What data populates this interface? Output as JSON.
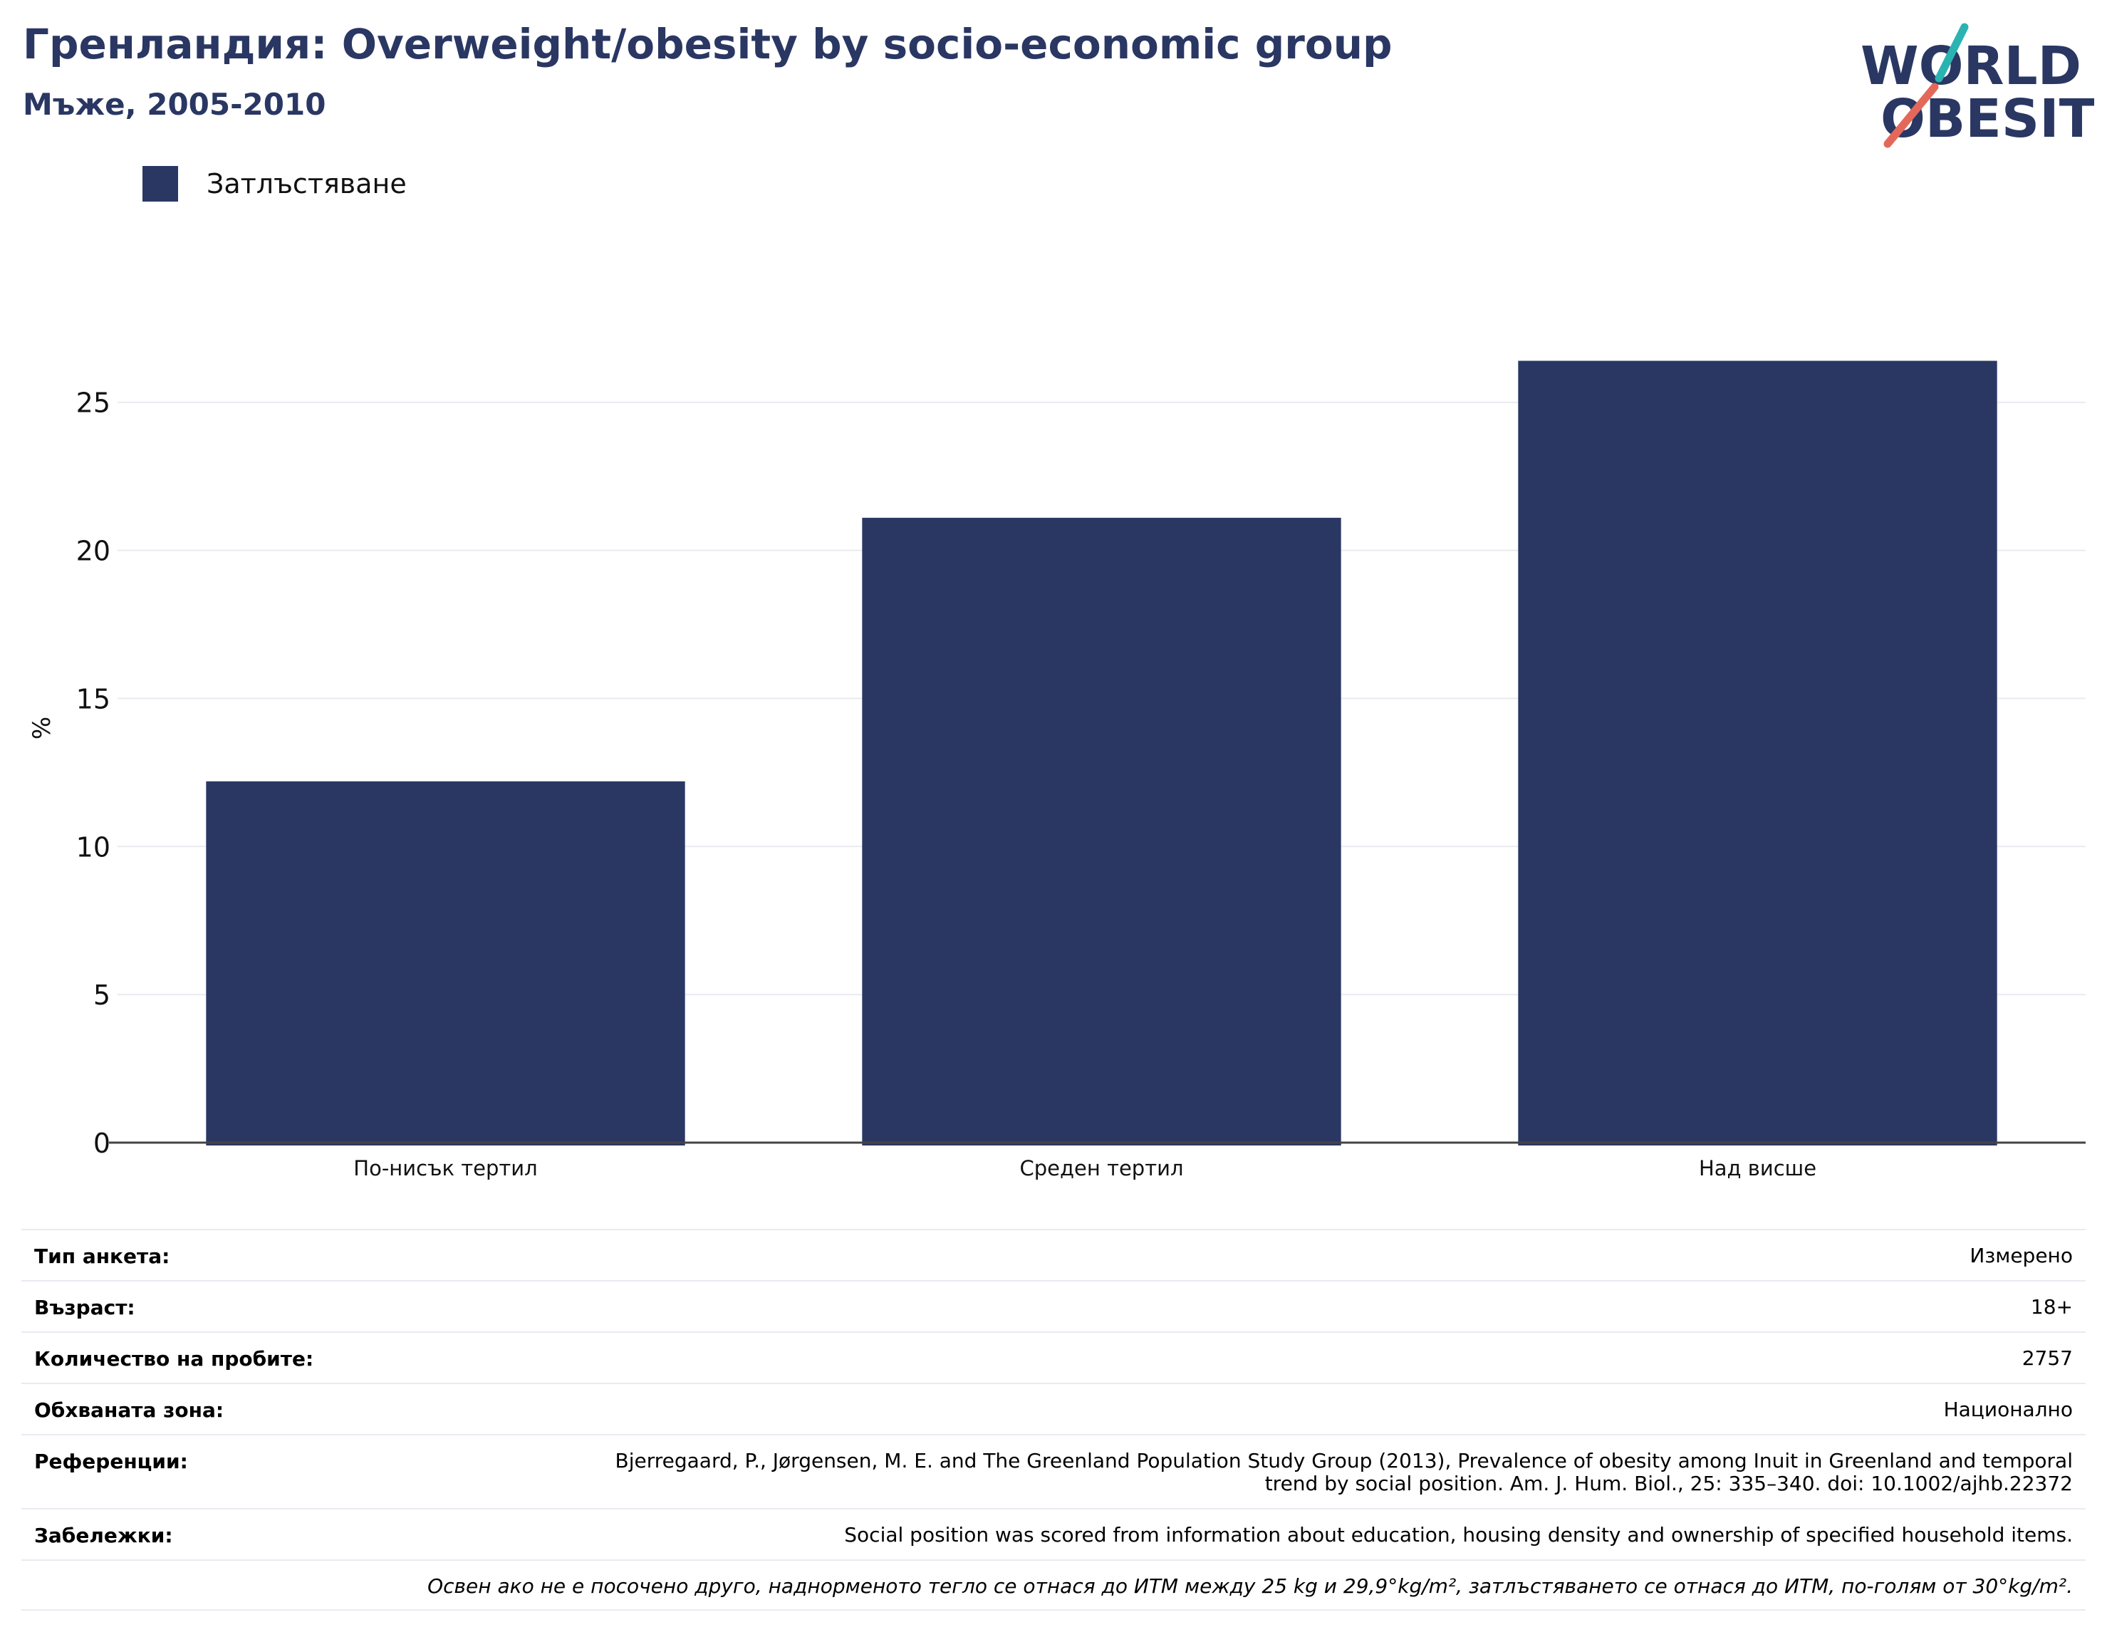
{
  "header": {
    "title": "Гренландия: Overweight/obesity by socio-economic group",
    "subtitle": "Мъже, 2005-2010"
  },
  "logo": {
    "line1": "WORLD",
    "line2": "OBESITY",
    "accent_teal": "#2bb3b1",
    "accent_coral": "#e4685a"
  },
  "colors": {
    "bar": "#2a3763",
    "grid": "#e9ebf0",
    "axis": "#444444"
  },
  "chart_data": {
    "type": "bar",
    "categories": [
      "По-нисък тертил",
      "Среден тертил",
      "Над висше"
    ],
    "series": [
      {
        "name": "Затлъстяване",
        "values": [
          12.2,
          21.1,
          26.4
        ]
      }
    ],
    "ylabel": "%",
    "xlabel": "",
    "ylim": [
      0,
      28
    ],
    "yticks": [
      0,
      5,
      10,
      15,
      20,
      25
    ],
    "grid": true,
    "legend": "top-left"
  },
  "meta": {
    "rows": [
      {
        "label": "Тип анкета:",
        "value": "Измерено"
      },
      {
        "label": "Възраст:",
        "value": "18+"
      },
      {
        "label": "Количество на пробите:",
        "value": "2757"
      },
      {
        "label": "Обхваната зона:",
        "value": "Национално"
      },
      {
        "label": "Референции:",
        "value": "Bjerregaard, P., Jørgensen, M. E. and The Greenland Population Study Group (2013), Prevalence of obesity among Inuit in Greenland and temporal trend by social position. Am. J. Hum. Biol., 25: 335–340. doi: 10.1002/ajhb.22372"
      },
      {
        "label": "Забележки:",
        "value": "Social position was scored from information about education, housing density and ownership of specified household items."
      }
    ],
    "note": "Освен ако не е посочено друго, наднорменото тегло се отнася до ИТМ между 25 kg и 29,9°kg/m², затлъстяването се отнася до ИТМ, по-голям от 30°kg/m²."
  }
}
